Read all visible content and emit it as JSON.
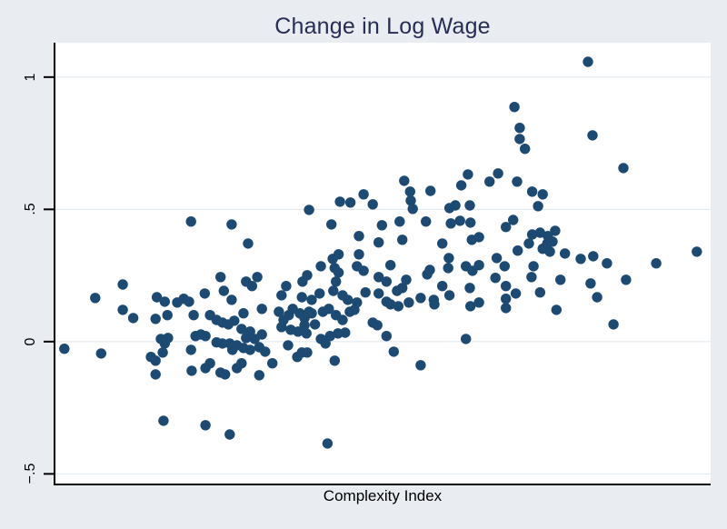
{
  "figure": {
    "title": "Change in Log Wage",
    "xlabel": "Complexity Index",
    "background_color": "#e9edf2",
    "plot_background": "#ffffff",
    "title_color": "#272d55",
    "gridline_color": "#dfe6ee",
    "axis_color": "#000000"
  },
  "chart_data": {
    "type": "scatter",
    "title": "Change in Log Wage",
    "xlabel": "Complexity Index",
    "ylabel": "",
    "legend": "none",
    "grid": "horizontal",
    "marker_color": "#1c4a72",
    "marker_radius_px": 5.7,
    "ylim": [
      -0.54,
      1.13
    ],
    "xlim_note": "x axis has no tick labels; x values are normalized 0-1 across the axis",
    "xlim": [
      0,
      1
    ],
    "y_ticks": [
      {
        "value": 1,
        "label": "1"
      },
      {
        "value": 0.5,
        "label": ".5"
      },
      {
        "value": 0,
        "label": "0"
      },
      {
        "value": -0.5,
        "label": "−.5"
      }
    ],
    "x_ticks": [],
    "n_points": 227,
    "points": [
      [
        0.208,
        0.454
      ],
      [
        0.27,
        0.443
      ],
      [
        0.295,
        0.371
      ],
      [
        0.388,
        0.498
      ],
      [
        0.422,
        0.443
      ],
      [
        0.435,
        0.529
      ],
      [
        0.451,
        0.526
      ],
      [
        0.471,
        0.557
      ],
      [
        0.485,
        0.519
      ],
      [
        0.464,
        0.399
      ],
      [
        0.494,
        0.375
      ],
      [
        0.499,
        0.44
      ],
      [
        0.533,
        0.608
      ],
      [
        0.542,
        0.567
      ],
      [
        0.543,
        0.533
      ],
      [
        0.546,
        0.502
      ],
      [
        0.526,
        0.454
      ],
      [
        0.53,
        0.385
      ],
      [
        0.573,
        0.57
      ],
      [
        0.566,
        0.454
      ],
      [
        0.591,
        0.371
      ],
      [
        0.602,
        0.505
      ],
      [
        0.611,
        0.515
      ],
      [
        0.604,
        0.447
      ],
      [
        0.618,
        0.457
      ],
      [
        0.63,
        0.632
      ],
      [
        0.62,
        0.591
      ],
      [
        0.633,
        0.515
      ],
      [
        0.634,
        0.45
      ],
      [
        0.636,
        0.385
      ],
      [
        0.647,
        0.395
      ],
      [
        0.663,
        0.605
      ],
      [
        0.601,
        0.316
      ],
      [
        0.433,
        0.33
      ],
      [
        0.424,
        0.313
      ],
      [
        0.464,
        0.33
      ],
      [
        0.813,
        1.058
      ],
      [
        0.701,
        0.887
      ],
      [
        0.709,
        0.808
      ],
      [
        0.709,
        0.766
      ],
      [
        0.717,
        0.729
      ],
      [
        0.82,
        0.78
      ],
      [
        0.867,
        0.656
      ],
      [
        0.676,
        0.636
      ],
      [
        0.705,
        0.605
      ],
      [
        0.728,
        0.567
      ],
      [
        0.744,
        0.557
      ],
      [
        0.737,
        0.512
      ],
      [
        0.699,
        0.46
      ],
      [
        0.688,
        0.433
      ],
      [
        0.728,
        0.405
      ],
      [
        0.74,
        0.412
      ],
      [
        0.752,
        0.399
      ],
      [
        0.763,
        0.419
      ],
      [
        0.759,
        0.378
      ],
      [
        0.751,
        0.371
      ],
      [
        0.744,
        0.351
      ],
      [
        0.755,
        0.34
      ],
      [
        0.723,
        0.371
      ],
      [
        0.706,
        0.344
      ],
      [
        0.778,
        0.333
      ],
      [
        0.802,
        0.313
      ],
      [
        0.821,
        0.323
      ],
      [
        0.842,
        0.296
      ],
      [
        0.979,
        0.34
      ],
      [
        0.674,
        0.316
      ],
      [
        0.917,
        0.296
      ],
      [
        0.015,
        -0.027
      ],
      [
        0.062,
        0.165
      ],
      [
        0.071,
        -0.045
      ],
      [
        0.104,
        0.216
      ],
      [
        0.104,
        0.12
      ],
      [
        0.12,
        0.089
      ],
      [
        0.156,
        0.168
      ],
      [
        0.168,
        0.151
      ],
      [
        0.187,
        0.148
      ],
      [
        0.197,
        0.162
      ],
      [
        0.205,
        0.151
      ],
      [
        0.154,
        0.086
      ],
      [
        0.172,
        0.1
      ],
      [
        0.212,
        0.1
      ],
      [
        0.229,
        0.182
      ],
      [
        0.237,
        0.1
      ],
      [
        0.253,
        0.244
      ],
      [
        0.258,
        0.192
      ],
      [
        0.27,
        0.158
      ],
      [
        0.247,
        0.082
      ],
      [
        0.256,
        0.072
      ],
      [
        0.265,
        0.065
      ],
      [
        0.274,
        0.079
      ],
      [
        0.292,
        0.227
      ],
      [
        0.301,
        0.21
      ],
      [
        0.309,
        0.244
      ],
      [
        0.316,
        0.124
      ],
      [
        0.288,
        0.107
      ],
      [
        0.285,
        0.048
      ],
      [
        0.298,
        0.038
      ],
      [
        0.316,
        0.027
      ],
      [
        0.305,
        0.01
      ],
      [
        0.292,
        0.014
      ],
      [
        0.247,
        -0.003
      ],
      [
        0.256,
        -0.007
      ],
      [
        0.267,
        -0.007
      ],
      [
        0.278,
        -0.014
      ],
      [
        0.288,
        -0.024
      ],
      [
        0.271,
        -0.031
      ],
      [
        0.298,
        -0.031
      ],
      [
        0.312,
        -0.021
      ],
      [
        0.321,
        -0.038
      ],
      [
        0.162,
        0.01
      ],
      [
        0.168,
        -0.007
      ],
      [
        0.173,
        0.014
      ],
      [
        0.147,
        -0.058
      ],
      [
        0.154,
        -0.072
      ],
      [
        0.165,
        -0.041
      ],
      [
        0.208,
        -0.031
      ],
      [
        0.215,
        0.021
      ],
      [
        0.223,
        0.027
      ],
      [
        0.23,
        0.021
      ],
      [
        0.154,
        -0.124
      ],
      [
        0.209,
        -0.11
      ],
      [
        0.23,
        -0.1
      ],
      [
        0.237,
        -0.082
      ],
      [
        0.253,
        -0.117
      ],
      [
        0.26,
        -0.124
      ],
      [
        0.278,
        -0.1
      ],
      [
        0.285,
        -0.082
      ],
      [
        0.312,
        -0.127
      ],
      [
        0.166,
        -0.299
      ],
      [
        0.23,
        -0.316
      ],
      [
        0.267,
        -0.351
      ],
      [
        0.406,
        0.285
      ],
      [
        0.427,
        0.278
      ],
      [
        0.433,
        0.261
      ],
      [
        0.461,
        0.285
      ],
      [
        0.471,
        0.268
      ],
      [
        0.512,
        0.289
      ],
      [
        0.494,
        0.244
      ],
      [
        0.506,
        0.227
      ],
      [
        0.536,
        0.234
      ],
      [
        0.568,
        0.254
      ],
      [
        0.572,
        0.271
      ],
      [
        0.6,
        0.278
      ],
      [
        0.627,
        0.285
      ],
      [
        0.637,
        0.268
      ],
      [
        0.647,
        0.289
      ],
      [
        0.385,
        0.251
      ],
      [
        0.353,
        0.21
      ],
      [
        0.378,
        0.227
      ],
      [
        0.429,
        0.227
      ],
      [
        0.346,
        0.175
      ],
      [
        0.377,
        0.168
      ],
      [
        0.392,
        0.158
      ],
      [
        0.404,
        0.182
      ],
      [
        0.425,
        0.192
      ],
      [
        0.439,
        0.175
      ],
      [
        0.447,
        0.158
      ],
      [
        0.461,
        0.148
      ],
      [
        0.474,
        0.186
      ],
      [
        0.494,
        0.182
      ],
      [
        0.506,
        0.151
      ],
      [
        0.522,
        0.192
      ],
      [
        0.53,
        0.203
      ],
      [
        0.524,
        0.134
      ],
      [
        0.512,
        0.141
      ],
      [
        0.54,
        0.148
      ],
      [
        0.558,
        0.165
      ],
      [
        0.578,
        0.158
      ],
      [
        0.579,
        0.141
      ],
      [
        0.591,
        0.21
      ],
      [
        0.602,
        0.175
      ],
      [
        0.633,
        0.203
      ],
      [
        0.634,
        0.134
      ],
      [
        0.647,
        0.148
      ],
      [
        0.363,
        0.124
      ],
      [
        0.342,
        0.113
      ],
      [
        0.349,
        0.082
      ],
      [
        0.357,
        0.1
      ],
      [
        0.374,
        0.107
      ],
      [
        0.381,
        0.089
      ],
      [
        0.388,
        0.113
      ],
      [
        0.392,
        0.107
      ],
      [
        0.397,
        0.065
      ],
      [
        0.381,
        0.062
      ],
      [
        0.409,
        0.113
      ],
      [
        0.418,
        0.124
      ],
      [
        0.429,
        0.1
      ],
      [
        0.439,
        0.082
      ],
      [
        0.45,
        0.113
      ],
      [
        0.457,
        0.12
      ],
      [
        0.485,
        0.072
      ],
      [
        0.492,
        0.062
      ],
      [
        0.506,
        0.021
      ],
      [
        0.346,
        0.055
      ],
      [
        0.36,
        0.045
      ],
      [
        0.371,
        0.038
      ],
      [
        0.384,
        0.031
      ],
      [
        0.406,
        0.01
      ],
      [
        0.413,
        -0.007
      ],
      [
        0.42,
        0.021
      ],
      [
        0.432,
        0.031
      ],
      [
        0.443,
        0.034
      ],
      [
        0.627,
        0.01
      ],
      [
        0.517,
        -0.038
      ],
      [
        0.558,
        -0.089
      ],
      [
        0.427,
        -0.072
      ],
      [
        0.37,
        -0.058
      ],
      [
        0.377,
        -0.041
      ],
      [
        0.385,
        -0.041
      ],
      [
        0.356,
        -0.014
      ],
      [
        0.332,
        -0.082
      ],
      [
        0.416,
        -0.385
      ],
      [
        0.672,
        0.241
      ],
      [
        0.686,
        0.285
      ],
      [
        0.688,
        0.21
      ],
      [
        0.703,
        0.182
      ],
      [
        0.688,
        0.162
      ],
      [
        0.688,
        0.127
      ],
      [
        0.73,
        0.285
      ],
      [
        0.727,
        0.244
      ],
      [
        0.74,
        0.186
      ],
      [
        0.771,
        0.234
      ],
      [
        0.765,
        0.12
      ],
      [
        0.817,
        0.22
      ],
      [
        0.827,
        0.168
      ],
      [
        0.852,
        0.065
      ],
      [
        0.871,
        0.234
      ]
    ]
  }
}
